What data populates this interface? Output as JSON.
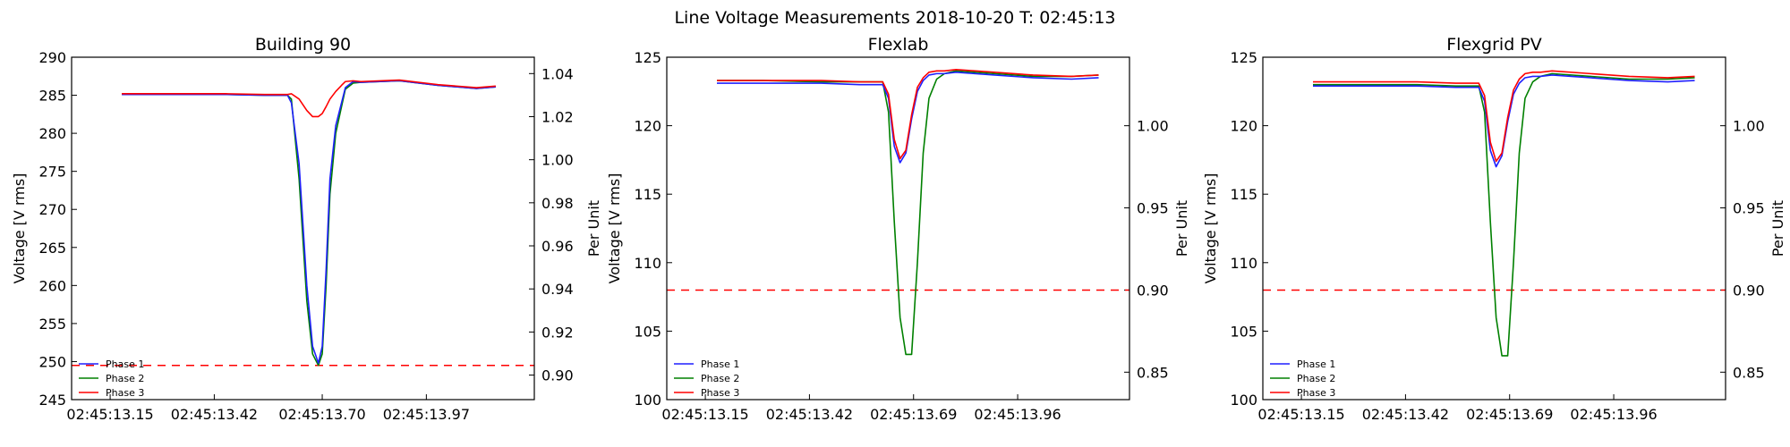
{
  "figure": {
    "suptitle": "Line Voltage Measurements 2018-10-20 T: 02:45:13"
  },
  "colors": {
    "phase1": "#1f1fff",
    "phase2": "#008000",
    "phase3": "#ff0000",
    "threshold": "#ff0000"
  },
  "chart_data": [
    {
      "type": "line",
      "title": "Building 90",
      "xlabel": "",
      "ylabel": "Voltage [V rms]",
      "y2label": "Per Unit",
      "xlim": [
        13.05,
        14.25
      ],
      "ylim": [
        245,
        290
      ],
      "y2lim": [
        0.8886,
        1.0476
      ],
      "xticks": [
        13.15,
        13.42,
        13.7,
        13.97
      ],
      "xtick_labels": [
        "02:45:13.15",
        "02:45:13.42",
        "02:45:13.70",
        "02:45:13.97"
      ],
      "yticks": [
        245,
        250,
        255,
        260,
        265,
        270,
        275,
        280,
        285,
        290
      ],
      "y2ticks": [
        0.9,
        0.92,
        0.94,
        0.96,
        0.98,
        1.0,
        1.02,
        1.04
      ],
      "threshold": 249.5,
      "legend": "lower-left",
      "x": [
        13.18,
        13.3,
        13.45,
        13.55,
        13.61,
        13.62,
        13.64,
        13.66,
        13.675,
        13.69,
        13.7,
        13.71,
        13.72,
        13.735,
        13.75,
        13.76,
        13.78,
        13.8,
        13.9,
        14.0,
        14.1,
        14.15
      ],
      "series": [
        {
          "name": "Phase 1",
          "values": [
            285.1,
            285.1,
            285.1,
            285.0,
            285.0,
            284.0,
            276,
            260,
            252,
            249.8,
            252,
            262,
            274,
            281,
            284,
            286,
            286.8,
            286.7,
            286.9,
            286.3,
            285.9,
            286.1
          ]
        },
        {
          "name": "Phase 2",
          "values": [
            285.1,
            285.1,
            285.1,
            285.0,
            285.0,
            284.5,
            274,
            258,
            251,
            249.5,
            251,
            260,
            272,
            280,
            283.5,
            285.8,
            286.6,
            286.7,
            286.9,
            286.3,
            285.9,
            286.1
          ]
        },
        {
          "name": "Phase 3",
          "values": [
            285.2,
            285.2,
            285.2,
            285.1,
            285.1,
            285.2,
            284.5,
            283,
            282.2,
            282.2,
            282.6,
            283.5,
            284.5,
            285.5,
            286.3,
            286.8,
            286.9,
            286.8,
            287.0,
            286.4,
            286.0,
            286.2
          ]
        }
      ]
    },
    {
      "type": "line",
      "title": "Flexlab",
      "xlabel": "",
      "ylabel": "Voltage [V rms]",
      "y2label": "Per Unit",
      "xlim": [
        13.05,
        14.25
      ],
      "ylim": [
        100,
        125
      ],
      "y2lim": [
        0.8333,
        1.0417
      ],
      "xticks": [
        13.15,
        13.42,
        13.69,
        13.96
      ],
      "xtick_labels": [
        "02:45:13.15",
        "02:45:13.42",
        "02:45:13.69",
        "02:45:13.96"
      ],
      "yticks": [
        100,
        105,
        110,
        115,
        120,
        125
      ],
      "y2ticks": [
        0.85,
        0.9,
        0.95,
        1.0
      ],
      "threshold": 108,
      "legend": "lower-left",
      "x": [
        13.18,
        13.3,
        13.45,
        13.55,
        13.61,
        13.625,
        13.64,
        13.655,
        13.67,
        13.685,
        13.7,
        13.715,
        13.73,
        13.75,
        13.77,
        13.8,
        13.9,
        14.0,
        14.1,
        14.17
      ],
      "series": [
        {
          "name": "Phase 1",
          "values": [
            123.1,
            123.1,
            123.1,
            123.0,
            123.0,
            122.0,
            118.5,
            117.3,
            118.0,
            120.5,
            122.5,
            123.3,
            123.7,
            123.8,
            123.8,
            123.9,
            123.7,
            123.5,
            123.4,
            123.5
          ]
        },
        {
          "name": "Phase 2",
          "values": [
            123.3,
            123.3,
            123.2,
            123.2,
            123.2,
            121.0,
            113.0,
            106.0,
            103.3,
            103.3,
            110.0,
            118.0,
            122.0,
            123.4,
            123.8,
            124.0,
            123.8,
            123.6,
            123.6,
            123.7
          ]
        },
        {
          "name": "Phase 3",
          "values": [
            123.3,
            123.3,
            123.3,
            123.2,
            123.2,
            122.3,
            119.0,
            117.6,
            118.2,
            120.8,
            122.8,
            123.5,
            123.9,
            124.0,
            124.0,
            124.1,
            123.9,
            123.7,
            123.6,
            123.7
          ]
        }
      ]
    },
    {
      "type": "line",
      "title": "Flexgrid PV",
      "xlabel": "",
      "ylabel": "Voltage [V rms]",
      "y2label": "Per Unit",
      "xlim": [
        13.05,
        14.25
      ],
      "ylim": [
        100,
        125
      ],
      "y2lim": [
        0.8333,
        1.0417
      ],
      "xticks": [
        13.15,
        13.42,
        13.69,
        13.96
      ],
      "xtick_labels": [
        "02:45:13.15",
        "02:45:13.42",
        "02:45:13.69",
        "02:45:13.96"
      ],
      "yticks": [
        100,
        105,
        110,
        115,
        120,
        125
      ],
      "y2ticks": [
        0.85,
        0.9,
        0.95,
        1.0
      ],
      "threshold": 108,
      "legend": "lower-left",
      "x": [
        13.18,
        13.3,
        13.45,
        13.55,
        13.61,
        13.625,
        13.64,
        13.655,
        13.67,
        13.685,
        13.7,
        13.715,
        13.73,
        13.75,
        13.77,
        13.8,
        13.9,
        14.0,
        14.1,
        14.17
      ],
      "series": [
        {
          "name": "Phase 1",
          "values": [
            122.9,
            122.9,
            122.9,
            122.8,
            122.8,
            121.8,
            118.2,
            117.0,
            117.8,
            120.3,
            122.3,
            123.1,
            123.5,
            123.6,
            123.6,
            123.7,
            123.5,
            123.3,
            123.2,
            123.3
          ]
        },
        {
          "name": "Phase 2",
          "values": [
            123.0,
            123.0,
            123.0,
            122.9,
            122.9,
            121.0,
            113.0,
            106.0,
            103.2,
            103.2,
            110.0,
            118.0,
            122.0,
            123.2,
            123.6,
            123.8,
            123.6,
            123.4,
            123.4,
            123.5
          ]
        },
        {
          "name": "Phase 3",
          "values": [
            123.2,
            123.2,
            123.2,
            123.1,
            123.1,
            122.2,
            118.8,
            117.4,
            118.0,
            120.6,
            122.6,
            123.4,
            123.8,
            123.9,
            123.9,
            124.0,
            123.8,
            123.6,
            123.5,
            123.6
          ]
        }
      ]
    }
  ]
}
